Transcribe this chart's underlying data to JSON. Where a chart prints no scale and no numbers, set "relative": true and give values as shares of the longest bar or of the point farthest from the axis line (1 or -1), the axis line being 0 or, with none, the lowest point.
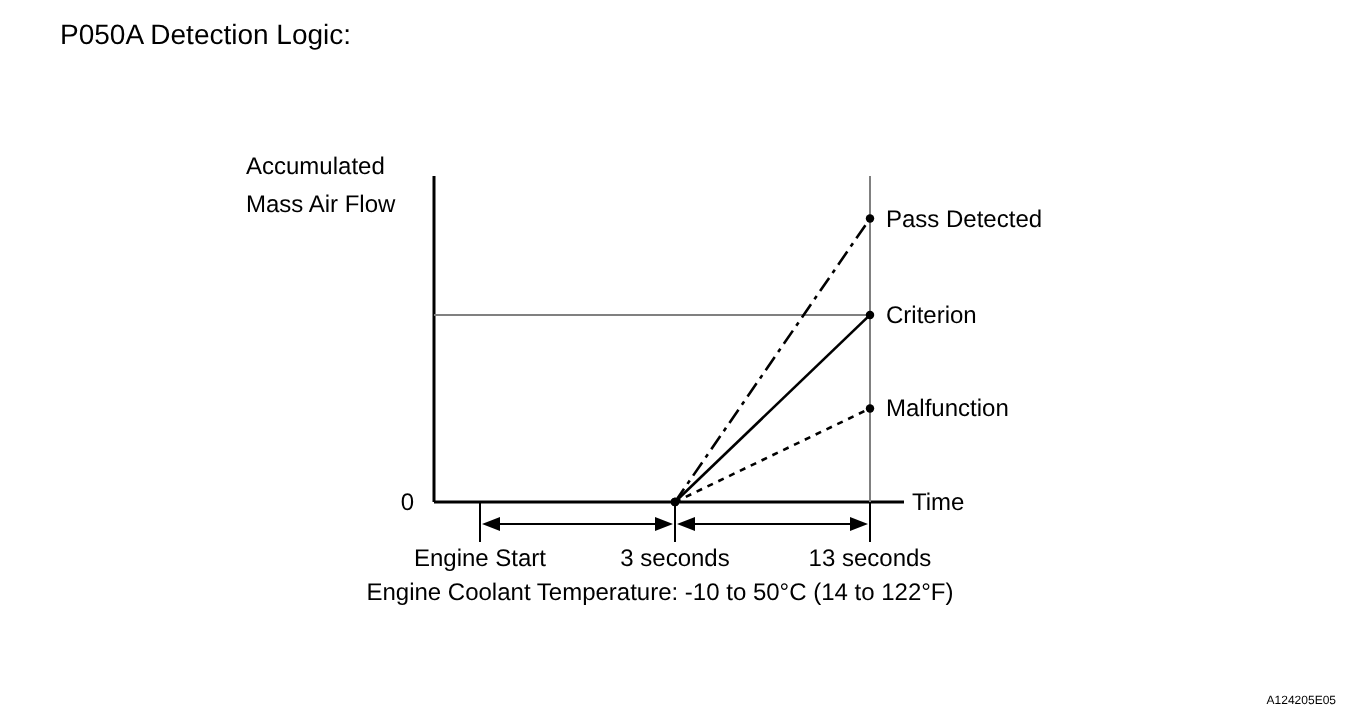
{
  "chart_data": {
    "type": "line",
    "title": "P050A Detection Logic:",
    "ylabel": "Accumulated\nMass Air Flow",
    "xlabel": "Time",
    "relative": true,
    "categories": [
      "Engine Start",
      "3 seconds",
      "13 seconds"
    ],
    "series": [
      {
        "name": "Pass Detected",
        "color": "#000000",
        "values": [
          null,
          0,
          1
        ],
        "line_style": "dashed",
        "marker": "circle"
      },
      {
        "name": "Criterion",
        "color": "#000000",
        "values": [
          null,
          0,
          0.66
        ],
        "line_style": "solid",
        "marker": "circle"
      },
      {
        "name": "Malfunction",
        "color": "#000000",
        "values": [
          null,
          0,
          0.33
        ],
        "line_style": "dotted",
        "marker": "circle"
      }
    ],
    "ref_lines": [
      {
        "axis": "y",
        "value": 0.66,
        "color": "#808080"
      },
      {
        "axis": "x",
        "value": "13 seconds",
        "color": "#808080"
      }
    ],
    "annotations": [
      "0",
      "Engine Coolant Temperature: -10 to 50°C (14 to 122°F)",
      "A124205E05"
    ]
  }
}
